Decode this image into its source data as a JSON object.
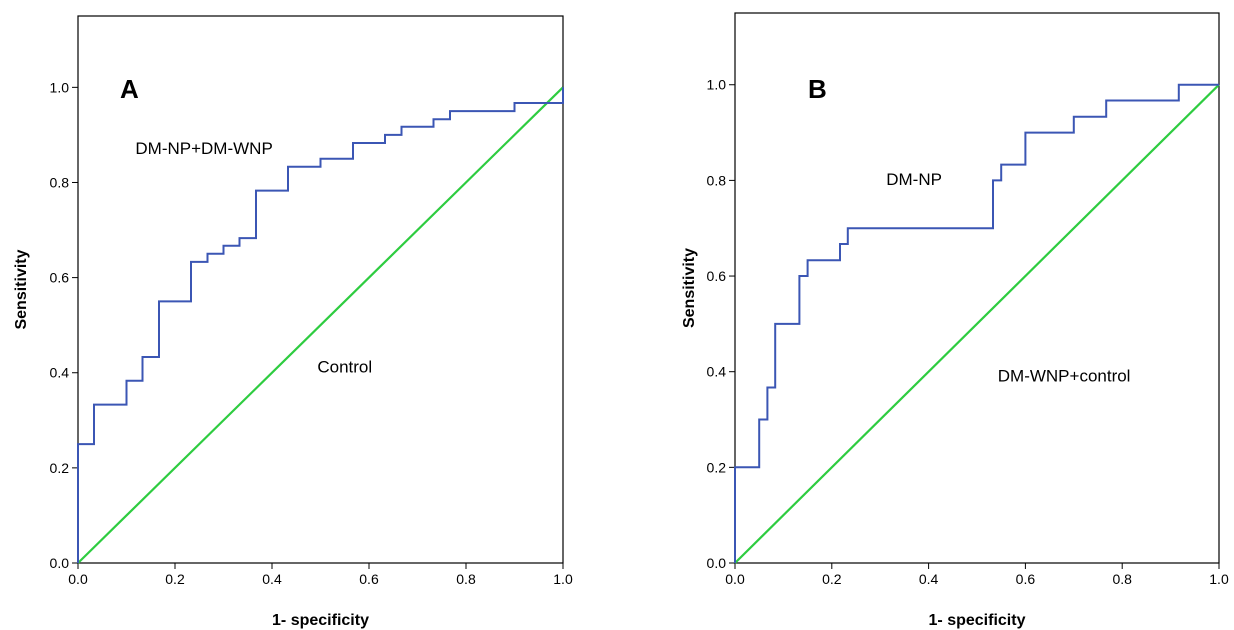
{
  "chart_data": [
    {
      "type": "line",
      "panel_label": "A",
      "xlabel": "1- specificity",
      "ylabel": "Sensitivity",
      "xlim": [
        0,
        1
      ],
      "ylim": [
        0,
        1.15
      ],
      "x_ticks": [
        "0.0",
        "0.2",
        "0.4",
        "0.6",
        "0.8",
        "1.0"
      ],
      "y_ticks": [
        "0.0",
        "0.2",
        "0.4",
        "0.6",
        "0.8",
        "1.0"
      ],
      "grid": false,
      "legend": "none",
      "series": [
        {
          "name": "DM-NP+DM-WNP",
          "color": "#3b56b4",
          "step": true,
          "points": [
            [
              0.0,
              0.0
            ],
            [
              0.0,
              0.25
            ],
            [
              0.033,
              0.25
            ],
            [
              0.033,
              0.333
            ],
            [
              0.1,
              0.333
            ],
            [
              0.1,
              0.383
            ],
            [
              0.133,
              0.383
            ],
            [
              0.133,
              0.433
            ],
            [
              0.167,
              0.433
            ],
            [
              0.167,
              0.55
            ],
            [
              0.233,
              0.55
            ],
            [
              0.233,
              0.633
            ],
            [
              0.267,
              0.633
            ],
            [
              0.267,
              0.65
            ],
            [
              0.3,
              0.65
            ],
            [
              0.3,
              0.667
            ],
            [
              0.333,
              0.667
            ],
            [
              0.333,
              0.683
            ],
            [
              0.367,
              0.683
            ],
            [
              0.367,
              0.783
            ],
            [
              0.433,
              0.783
            ],
            [
              0.433,
              0.833
            ],
            [
              0.5,
              0.833
            ],
            [
              0.5,
              0.85
            ],
            [
              0.567,
              0.85
            ],
            [
              0.567,
              0.883
            ],
            [
              0.633,
              0.883
            ],
            [
              0.633,
              0.9
            ],
            [
              0.667,
              0.9
            ],
            [
              0.667,
              0.917
            ],
            [
              0.733,
              0.917
            ],
            [
              0.733,
              0.933
            ],
            [
              0.767,
              0.933
            ],
            [
              0.767,
              0.95
            ],
            [
              0.9,
              0.95
            ],
            [
              0.9,
              0.967
            ],
            [
              1.0,
              0.967
            ],
            [
              1.0,
              1.0
            ]
          ]
        },
        {
          "name": "Control",
          "color": "#2ecc40",
          "step": false,
          "points": [
            [
              0.0,
              0.0
            ],
            [
              1.0,
              1.0
            ]
          ]
        }
      ],
      "annotations": [
        {
          "text": "DM-NP+DM-WNP",
          "x": 0.26,
          "y": 0.86
        },
        {
          "text": "Control",
          "x": 0.55,
          "y": 0.4
        }
      ]
    },
    {
      "type": "line",
      "panel_label": "B",
      "xlabel": "1- specificity",
      "ylabel": "Sensitivity",
      "xlim": [
        0,
        1
      ],
      "ylim": [
        0,
        1.15
      ],
      "x_ticks": [
        "0.0",
        "0.2",
        "0.4",
        "0.6",
        "0.8",
        "1.0"
      ],
      "y_ticks": [
        "0.0",
        "0.2",
        "0.4",
        "0.6",
        "0.8",
        "1.0"
      ],
      "grid": false,
      "legend": "none",
      "series": [
        {
          "name": "DM-NP",
          "color": "#3b56b4",
          "step": true,
          "points": [
            [
              0.0,
              0.0
            ],
            [
              0.0,
              0.2
            ],
            [
              0.05,
              0.2
            ],
            [
              0.05,
              0.3
            ],
            [
              0.067,
              0.3
            ],
            [
              0.067,
              0.367
            ],
            [
              0.083,
              0.367
            ],
            [
              0.083,
              0.5
            ],
            [
              0.133,
              0.5
            ],
            [
              0.133,
              0.6
            ],
            [
              0.15,
              0.6
            ],
            [
              0.15,
              0.633
            ],
            [
              0.217,
              0.633
            ],
            [
              0.217,
              0.667
            ],
            [
              0.233,
              0.667
            ],
            [
              0.233,
              0.7
            ],
            [
              0.533,
              0.7
            ],
            [
              0.533,
              0.8
            ],
            [
              0.55,
              0.8
            ],
            [
              0.55,
              0.833
            ],
            [
              0.6,
              0.833
            ],
            [
              0.6,
              0.9
            ],
            [
              0.7,
              0.9
            ],
            [
              0.7,
              0.933
            ],
            [
              0.767,
              0.933
            ],
            [
              0.767,
              0.967
            ],
            [
              0.917,
              0.967
            ],
            [
              0.917,
              1.0
            ],
            [
              1.0,
              1.0
            ]
          ]
        },
        {
          "name": "DM-WNP+control",
          "color": "#2ecc40",
          "step": false,
          "points": [
            [
              0.0,
              0.0
            ],
            [
              1.0,
              1.0
            ]
          ]
        }
      ],
      "annotations": [
        {
          "text": "DM-NP",
          "x": 0.37,
          "y": 0.79
        },
        {
          "text": "DM-WNP+control",
          "x": 0.68,
          "y": 0.38
        }
      ]
    }
  ]
}
